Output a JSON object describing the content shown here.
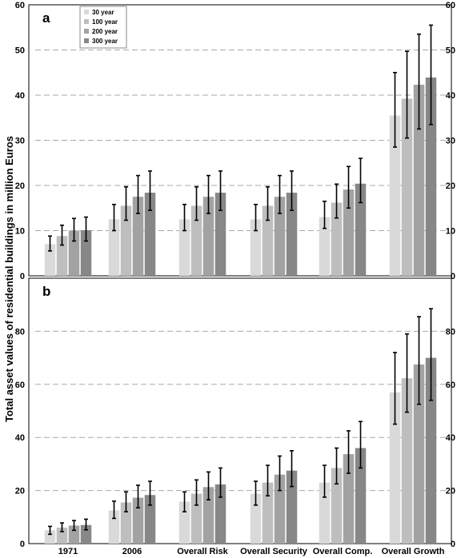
{
  "ylabel": "Total asset values of residential buildings in million Euros",
  "categories": [
    "1971",
    "2006",
    "Overall Risk",
    "Overall Security",
    "Overall Comp.",
    "Overall Growth"
  ],
  "legend": {
    "placement": "top-left of panel a",
    "entries": [
      "30 year",
      "100 year",
      "200 year",
      "300 year"
    ]
  },
  "colors": {
    "30 year": "#d9d9d9",
    "100 year": "#bebebe",
    "200 year": "#a2a2a2",
    "300 year": "#878787",
    "error_bar": "#000000",
    "grid": "#aaaaaa"
  },
  "chart_data": [
    {
      "panel": "a",
      "type": "bar",
      "ylim": [
        0,
        60
      ],
      "yticks": [
        0,
        10,
        20,
        30,
        40,
        50,
        60
      ],
      "grid": "horizontal dashed",
      "categories": [
        "1971",
        "2006",
        "Overall Risk",
        "Overall Security",
        "Overall Comp.",
        "Overall Growth"
      ],
      "series": [
        {
          "name": "30 year",
          "values": [
            7.0,
            12.5,
            12.5,
            12.5,
            13.0,
            35.5
          ],
          "err_low": [
            5.5,
            10.0,
            10.0,
            10.0,
            10.5,
            28.5
          ],
          "err_high": [
            8.8,
            15.8,
            15.8,
            15.8,
            16.5,
            45.0
          ]
        },
        {
          "name": "100 year",
          "values": [
            8.8,
            15.5,
            15.5,
            15.5,
            16.2,
            39.2
          ],
          "err_low": [
            6.8,
            12.3,
            12.3,
            12.3,
            12.8,
            30.5
          ],
          "err_high": [
            11.2,
            19.7,
            19.7,
            19.7,
            20.3,
            49.7
          ]
        },
        {
          "name": "200 year",
          "values": [
            10.0,
            17.5,
            17.5,
            17.5,
            19.1,
            42.3
          ],
          "err_low": [
            7.7,
            13.8,
            13.8,
            13.8,
            15.0,
            32.5
          ],
          "err_high": [
            12.7,
            22.2,
            22.2,
            22.2,
            24.2,
            53.5
          ]
        },
        {
          "name": "300 year",
          "values": [
            10.1,
            18.4,
            18.4,
            18.4,
            20.4,
            43.9
          ],
          "err_low": [
            7.7,
            14.5,
            14.5,
            14.5,
            16.2,
            33.5
          ],
          "err_high": [
            13.0,
            23.2,
            23.2,
            23.2,
            26.0,
            55.5
          ]
        }
      ]
    },
    {
      "panel": "b",
      "type": "bar",
      "ylim": [
        0,
        100
      ],
      "yticks": [
        0,
        20,
        40,
        60,
        80
      ],
      "grid": "horizontal dashed",
      "categories": [
        "1971",
        "2006",
        "Overall Risk",
        "Overall Security",
        "Overall Comp.",
        "Overall Growth"
      ],
      "series": [
        {
          "name": "30 year",
          "values": [
            5.0,
            12.5,
            15.8,
            18.8,
            23.0,
            57.0
          ],
          "err_low": [
            3.5,
            9.5,
            12.0,
            14.5,
            17.5,
            45.0
          ],
          "err_high": [
            6.5,
            16.0,
            19.5,
            23.5,
            29.5,
            72.0
          ]
        },
        {
          "name": "100 year",
          "values": [
            6.0,
            15.5,
            18.8,
            23.0,
            28.5,
            62.3
          ],
          "err_low": [
            4.5,
            12.0,
            14.5,
            18.0,
            22.5,
            49.5
          ],
          "err_high": [
            7.8,
            19.5,
            24.0,
            29.5,
            36.0,
            79.0
          ]
        },
        {
          "name": "200 year",
          "values": [
            6.8,
            17.3,
            21.3,
            26.0,
            33.7,
            67.5
          ],
          "err_low": [
            5.0,
            13.5,
            16.5,
            20.0,
            26.5,
            52.5
          ],
          "err_high": [
            8.7,
            22.0,
            27.0,
            33.0,
            42.5,
            85.5
          ]
        },
        {
          "name": "300 year",
          "values": [
            7.0,
            18.3,
            22.3,
            27.5,
            36.0,
            70.0
          ],
          "err_low": [
            5.2,
            14.5,
            17.5,
            21.5,
            28.5,
            54.0
          ],
          "err_high": [
            9.2,
            23.5,
            28.5,
            35.0,
            46.0,
            88.5
          ]
        }
      ]
    }
  ]
}
